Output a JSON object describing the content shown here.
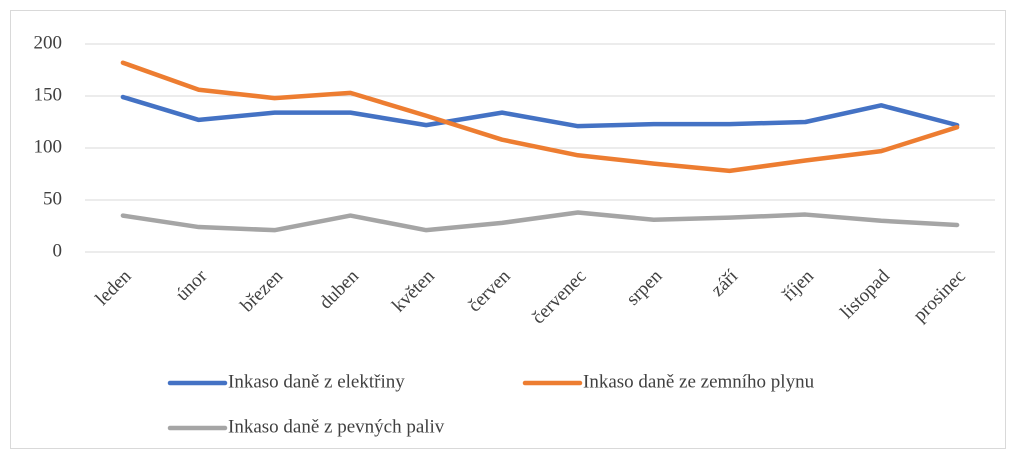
{
  "chart_data": {
    "type": "line",
    "categories": [
      "leden",
      "únor",
      "březen",
      "duben",
      "květen",
      "červen",
      "červenec",
      "srpen",
      "září",
      "říjen",
      "listopad",
      "prosinec"
    ],
    "series": [
      {
        "name": "Inkaso daně z elektřiny",
        "color": "#4472c4",
        "values": [
          149,
          127,
          134,
          134,
          122,
          134,
          121,
          123,
          123,
          125,
          141,
          122
        ]
      },
      {
        "name": "Inkaso daně ze zemního plynu",
        "color": "#ed7d31",
        "values": [
          182,
          156,
          148,
          153,
          131,
          108,
          93,
          85,
          78,
          88,
          97,
          120
        ]
      },
      {
        "name": "Inkaso daně z pevných paliv",
        "color": "#a5a5a5",
        "values": [
          35,
          24,
          21,
          35,
          21,
          28,
          38,
          31,
          33,
          36,
          30,
          26
        ]
      }
    ],
    "ylim": [
      0,
      200
    ],
    "yticks": [
      0,
      50,
      100,
      150,
      200
    ],
    "grid": true,
    "legend": "bottom"
  }
}
